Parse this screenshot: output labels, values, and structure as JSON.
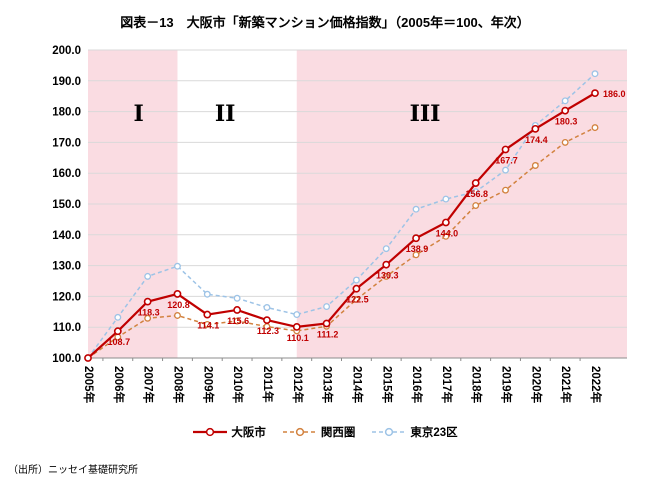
{
  "title": "図表－13　大阪市「新築マンション価格指数」（2005年＝100、年次）",
  "source": "（出所）ニッセイ基礎研究所",
  "chart_data": {
    "type": "line",
    "title": "図表－13　大阪市「新築マンション価格指数」（2005年＝100、年次）",
    "categories": [
      "2005年",
      "2006年",
      "2007年",
      "2008年",
      "2009年",
      "2010年",
      "2011年",
      "2012年",
      "2013年",
      "2014年",
      "2015年",
      "2016年",
      "2017年",
      "2018年",
      "2019年",
      "2020年",
      "2021年",
      "2022年"
    ],
    "ylim": [
      100.0,
      200.0
    ],
    "ytick_step": 10.0,
    "grid": true,
    "legend_position": "bottom",
    "series": [
      {
        "name": "大阪市",
        "color": "#c00000",
        "style": "solid",
        "marker": "circle",
        "values": [
          100,
          108.7,
          118.3,
          120.8,
          114.1,
          115.6,
          112.3,
          110.1,
          111.2,
          122.5,
          130.3,
          138.9,
          144.0,
          156.8,
          167.7,
          174.4,
          180.3,
          186.0
        ],
        "point_labels": [
          "",
          "108.7",
          "118.3",
          "120.8",
          "114.1",
          "115.6",
          "112.3",
          "110.1",
          "111.2",
          "122.5",
          "130.3",
          "138.9",
          "144.0",
          "156.8",
          "167.7",
          "174.4",
          "180.3",
          "186.0"
        ]
      },
      {
        "name": "関西圏",
        "color": "#d2823f",
        "style": "dashed",
        "marker": "circle",
        "values": [
          100,
          106.8,
          112.9,
          113.8,
          110.9,
          112.0,
          110.2,
          108.8,
          110.3,
          119.0,
          126.5,
          133.5,
          139.5,
          149.5,
          154.5,
          162.5,
          170.0,
          174.8
        ]
      },
      {
        "name": "東京23区",
        "color": "#9dc3e6",
        "style": "dashed",
        "marker": "circle",
        "values": [
          100,
          113.2,
          126.5,
          129.8,
          120.7,
          119.4,
          116.4,
          114.1,
          116.7,
          125.3,
          135.5,
          148.3,
          151.6,
          154.0,
          161.0,
          175.5,
          183.5,
          192.3
        ]
      }
    ],
    "regions": [
      {
        "label": "Ⅰ",
        "from_index": 0,
        "to_index": 3,
        "fill": "#fadce2",
        "label_index": 1.7,
        "label_value": 177
      },
      {
        "label": "Ⅱ",
        "from_index": 3,
        "to_index": 7,
        "fill": "#ffffff",
        "label_index": 4.6,
        "label_value": 177
      },
      {
        "label": "Ⅲ",
        "from_index": 7,
        "to_index": 17,
        "fill": "#fadce2",
        "label_index": 11.3,
        "label_value": 177
      }
    ]
  }
}
